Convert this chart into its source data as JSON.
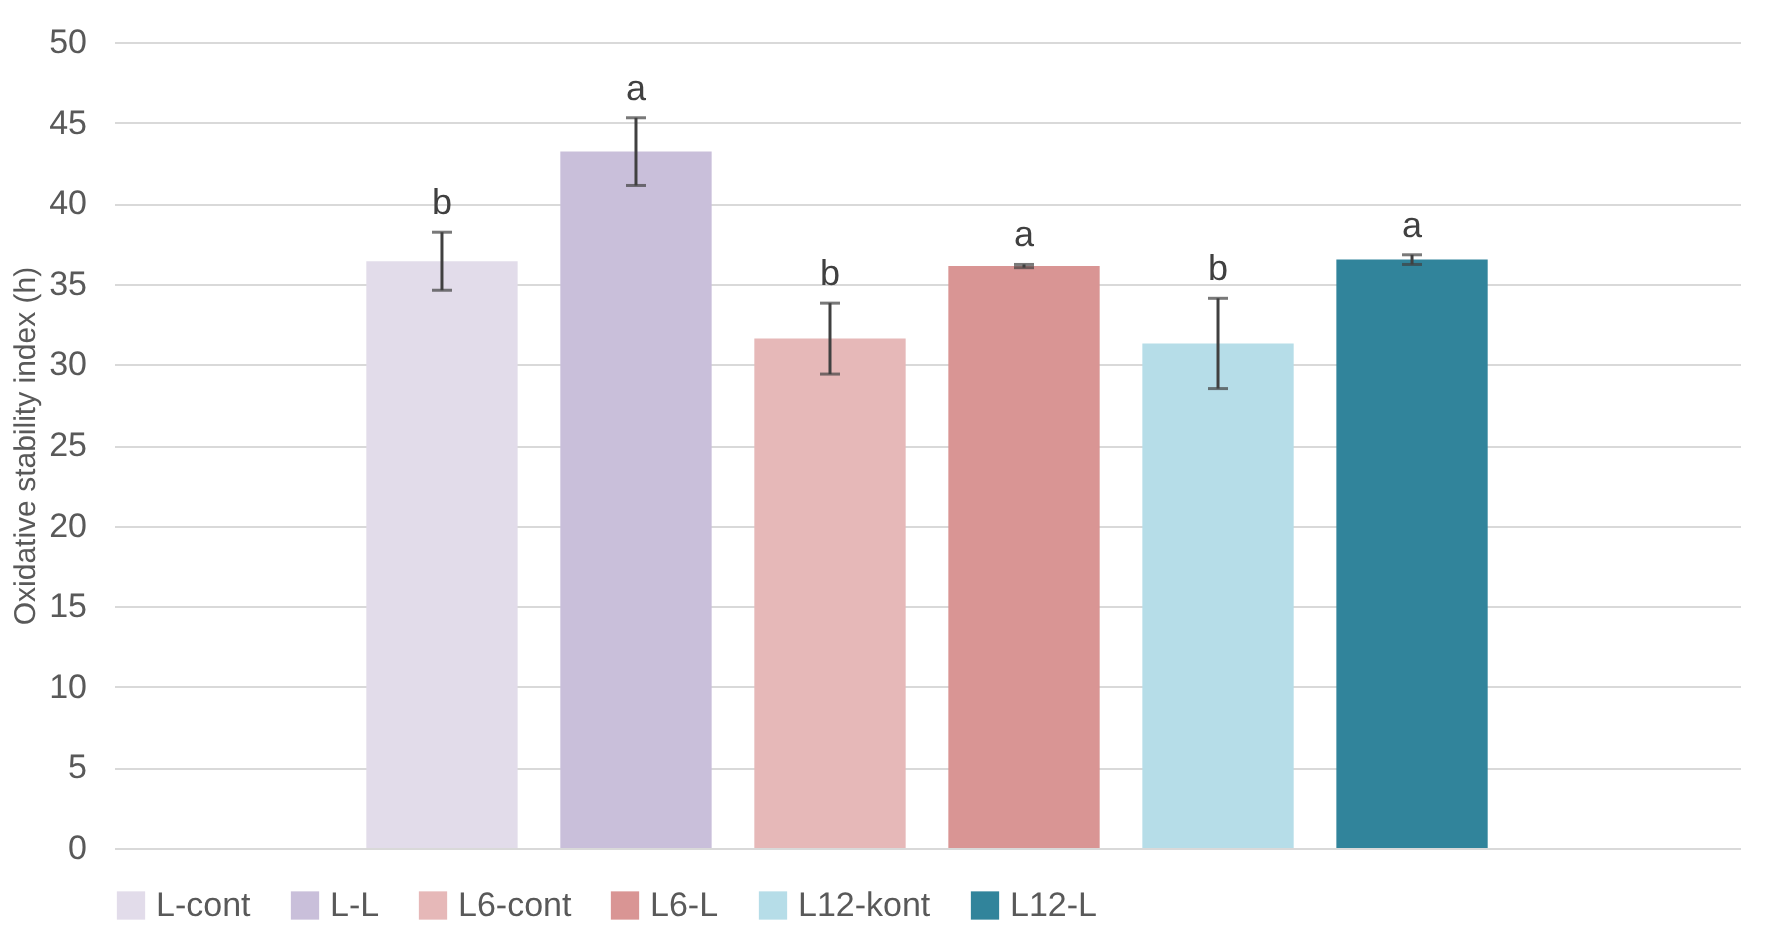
{
  "chart_data": {
    "type": "bar",
    "ylabel": "Oxidative stability index (h)",
    "categories": [
      null
    ],
    "series": [
      {
        "name": "L-cont",
        "color": "#e2dcea",
        "values": [
          36.4
        ],
        "errors": [
          1.8
        ]
      },
      {
        "name": "L-L",
        "color": "#c9bfda",
        "values": [
          43.2
        ],
        "errors": [
          2.1
        ]
      },
      {
        "name": "L6-cont",
        "color": "#e6b8b8",
        "values": [
          31.6
        ],
        "errors": [
          2.2
        ]
      },
      {
        "name": "L6-L",
        "color": "#d99594",
        "values": [
          36.1
        ],
        "errors": [
          0.1
        ]
      },
      {
        "name": "L12-kont",
        "color": "#b6dde8",
        "values": [
          31.3
        ],
        "errors": [
          2.8
        ]
      },
      {
        "name": "L12-L",
        "color": "#31849b",
        "values": [
          36.5
        ],
        "errors": [
          0.3
        ]
      }
    ],
    "annotations": [
      "b",
      "a",
      "b",
      "a",
      "b",
      "a"
    ],
    "ylim": [
      0,
      50
    ],
    "yticks": [
      0,
      5,
      10,
      15,
      20,
      25,
      30,
      35,
      40,
      45,
      50
    ],
    "grid": "y",
    "legend": "bottom"
  }
}
